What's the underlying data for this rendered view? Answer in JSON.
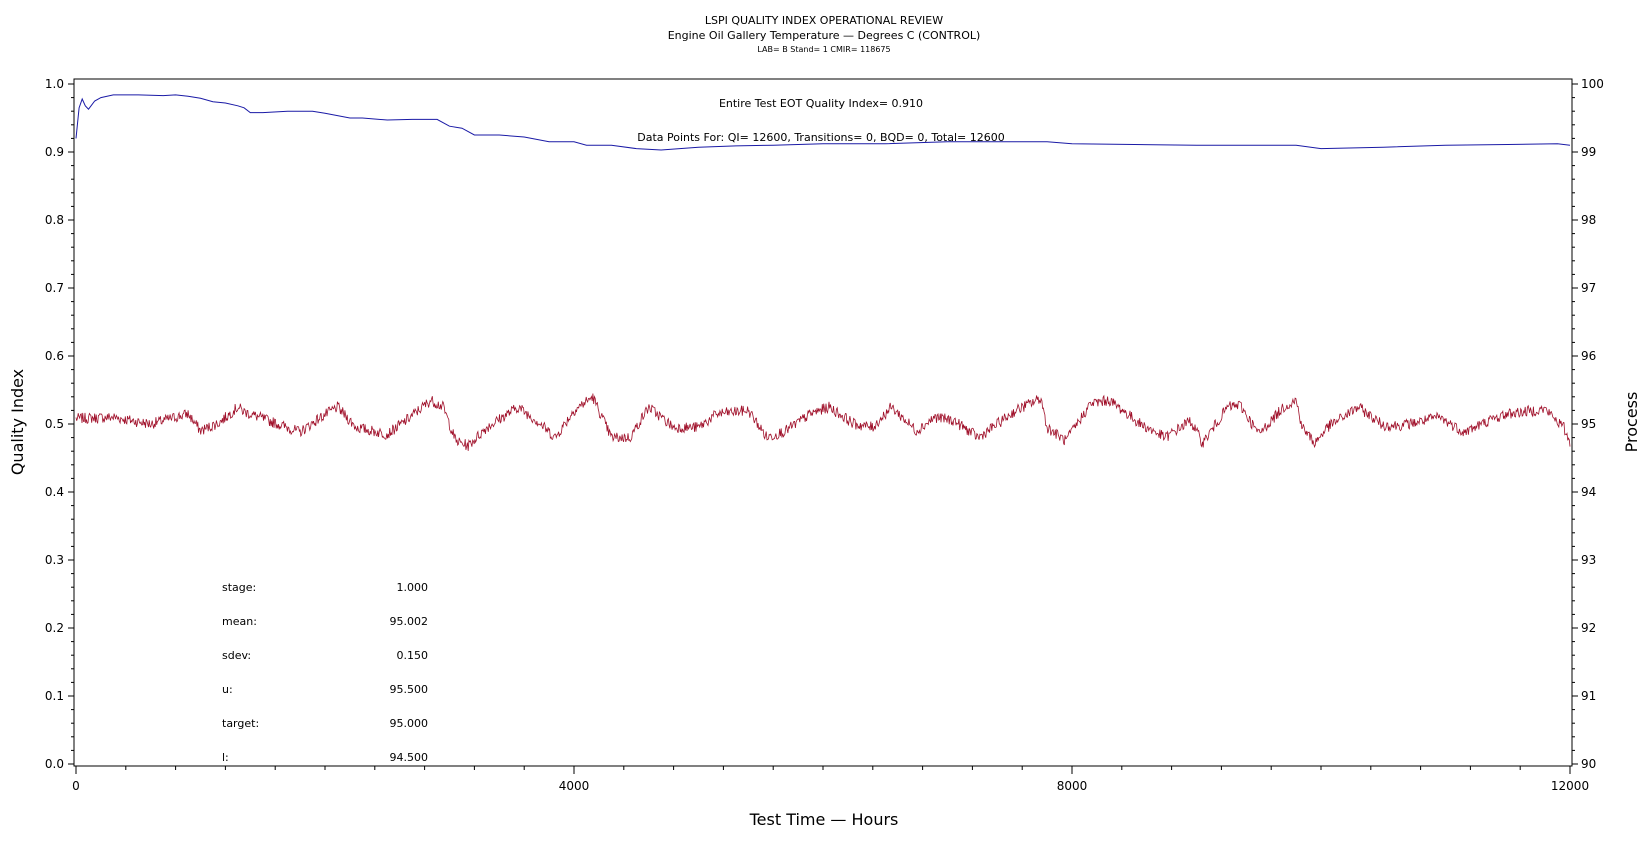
{
  "header": {
    "title": "LSPI QUALITY INDEX OPERATIONAL REVIEW",
    "subtitle": "Engine Oil Gallery Temperature — Degrees C (CONTROL)",
    "meta": "LAB= B Stand= 1 CMIR= 118675"
  },
  "annotations": {
    "quality_index": "Entire Test EOT Quality Index=   0.910",
    "data_points": "Data Points For: QI= 12600, Transitions=     0, BQD=     0, Total= 12600"
  },
  "stats": [
    {
      "label": "stage:",
      "value": "1.000"
    },
    {
      "label": "mean:",
      "value": "95.002"
    },
    {
      "label": "sdev:",
      "value": "0.150"
    },
    {
      "label": "u:",
      "value": "95.500"
    },
    {
      "label": "target:",
      "value": "95.000"
    },
    {
      "label": "l:",
      "value": "94.500"
    }
  ],
  "chart_data": {
    "type": "line",
    "title": "LSPI QUALITY INDEX OPERATIONAL REVIEW",
    "xlabel": "Test Time — Hours",
    "ylabel": "Quality Index",
    "y2label": "Process",
    "xlim": [
      0,
      12000
    ],
    "ylim": [
      0,
      1.0
    ],
    "y2lim": [
      90,
      100
    ],
    "x_ticks": [
      "0",
      "4000",
      "8000",
      "12000"
    ],
    "y_ticks": [
      "0.0",
      "0.1",
      "0.2",
      "0.3",
      "0.4",
      "0.5",
      "0.6",
      "0.7",
      "0.8",
      "0.9",
      "1.0"
    ],
    "y2_ticks": [
      "90",
      "91",
      "92",
      "93",
      "94",
      "95",
      "96",
      "97",
      "98",
      "99",
      "100"
    ],
    "grid": false,
    "colors": {
      "quality_index": "#1a1aa6",
      "process": "#a0102a"
    },
    "series": [
      {
        "key": "quality_index",
        "axis": "left",
        "x": [
          0,
          25,
          50,
          75,
          100,
          150,
          200,
          300,
          500,
          700,
          800,
          900,
          1000,
          1100,
          1200,
          1300,
          1350,
          1400,
          1500,
          1700,
          1900,
          2000,
          2200,
          2300,
          2500,
          2700,
          2900,
          3000,
          3100,
          3200,
          3400,
          3600,
          3800,
          4000,
          4100,
          4300,
          4500,
          4700,
          5000,
          5300,
          5600,
          6000,
          6500,
          7000,
          7500,
          7800,
          8000,
          8500,
          9000,
          9500,
          9800,
          10000,
          10500,
          11000,
          11500,
          11900,
          12000
        ],
        "y": [
          0.92,
          0.965,
          0.978,
          0.968,
          0.963,
          0.975,
          0.98,
          0.984,
          0.984,
          0.983,
          0.984,
          0.982,
          0.979,
          0.974,
          0.972,
          0.968,
          0.965,
          0.958,
          0.958,
          0.96,
          0.96,
          0.957,
          0.95,
          0.95,
          0.947,
          0.948,
          0.948,
          0.938,
          0.935,
          0.925,
          0.925,
          0.922,
          0.915,
          0.915,
          0.91,
          0.91,
          0.905,
          0.903,
          0.907,
          0.909,
          0.91,
          0.912,
          0.912,
          0.915,
          0.915,
          0.915,
          0.912,
          0.911,
          0.91,
          0.91,
          0.91,
          0.905,
          0.907,
          0.91,
          0.911,
          0.912,
          0.91
        ]
      },
      {
        "key": "process",
        "axis": "right",
        "x": [
          0,
          300,
          600,
          900,
          1000,
          1150,
          1300,
          1350,
          1650,
          1800,
          1950,
          2100,
          2250,
          2500,
          2650,
          2850,
          2950,
          3050,
          3150,
          3300,
          3550,
          3700,
          3850,
          4000,
          4150,
          4300,
          4450,
          4600,
          4800,
          5000,
          5150,
          5400,
          5550,
          5700,
          5900,
          6050,
          6250,
          6400,
          6550,
          6750,
          6900,
          7050,
          7250,
          7400,
          7550,
          7750,
          7800,
          7950,
          8150,
          8300,
          8550,
          8750,
          8950,
          9050,
          9250,
          9350,
          9500,
          9700,
          9800,
          9850,
          9950,
          10050,
          10300,
          10500,
          10650,
          10950,
          11150,
          11350,
          11500,
          11800,
          11950,
          12000
        ],
        "y": [
          95.08,
          95.1,
          95.0,
          95.15,
          94.9,
          95.02,
          95.25,
          95.18,
          94.98,
          94.88,
          95.08,
          95.25,
          94.95,
          94.85,
          95.05,
          95.35,
          95.25,
          94.75,
          94.68,
          94.95,
          95.25,
          95.05,
          94.8,
          95.2,
          95.4,
          94.8,
          94.8,
          95.25,
          94.95,
          94.95,
          95.15,
          95.2,
          94.8,
          94.9,
          95.15,
          95.25,
          95.0,
          94.95,
          95.25,
          94.9,
          95.1,
          95.05,
          94.8,
          95.0,
          95.2,
          95.38,
          94.95,
          94.75,
          95.3,
          95.35,
          95.0,
          94.8,
          95.05,
          94.72,
          95.25,
          95.28,
          94.85,
          95.25,
          95.35,
          94.95,
          94.72,
          94.95,
          95.25,
          94.98,
          94.98,
          95.1,
          94.88,
          95.05,
          95.15,
          95.22,
          94.95,
          94.72
        ]
      }
    ]
  }
}
